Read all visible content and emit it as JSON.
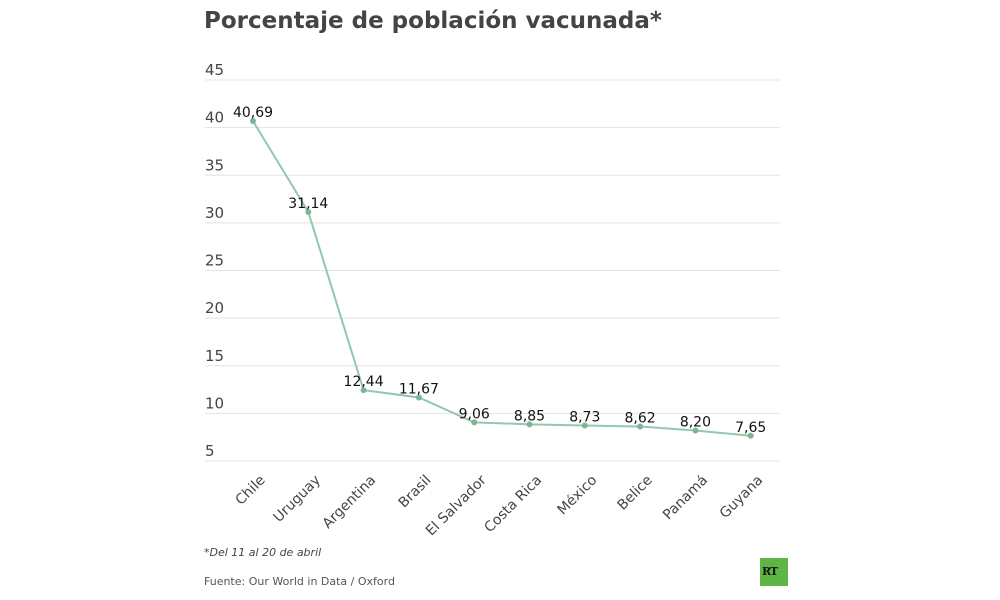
{
  "title": "Porcentaje de población vacunada*",
  "note": "*Del 11 al 20 de abril",
  "source": "Fuente: Our World in Data / Oxford",
  "logo": "RT",
  "colors": {
    "line": "#93c8ab",
    "point": "#7db696",
    "grid": "#e3e3e3",
    "logo": "#5fb543"
  },
  "chart_data": {
    "type": "line",
    "title": "Porcentaje de población vacunada*",
    "categories": [
      "Chile",
      "Uruguay",
      "Argentina",
      "Brasil",
      "El Salvador",
      "Costa Rica",
      "México",
      "Belice",
      "Panamá",
      "Guyana"
    ],
    "values": [
      40.69,
      31.14,
      12.44,
      11.67,
      9.06,
      8.85,
      8.73,
      8.62,
      8.2,
      7.65
    ],
    "data_labels": [
      "40,69",
      "31,14",
      "12,44",
      "11,67",
      "9,06",
      "8,85",
      "8,73",
      "8,62",
      "8,20",
      "7,65"
    ],
    "yticks": [
      5,
      10,
      15,
      20,
      25,
      30,
      35,
      40,
      45
    ],
    "ylim": [
      5,
      45
    ],
    "grid": true,
    "legend": "none"
  }
}
